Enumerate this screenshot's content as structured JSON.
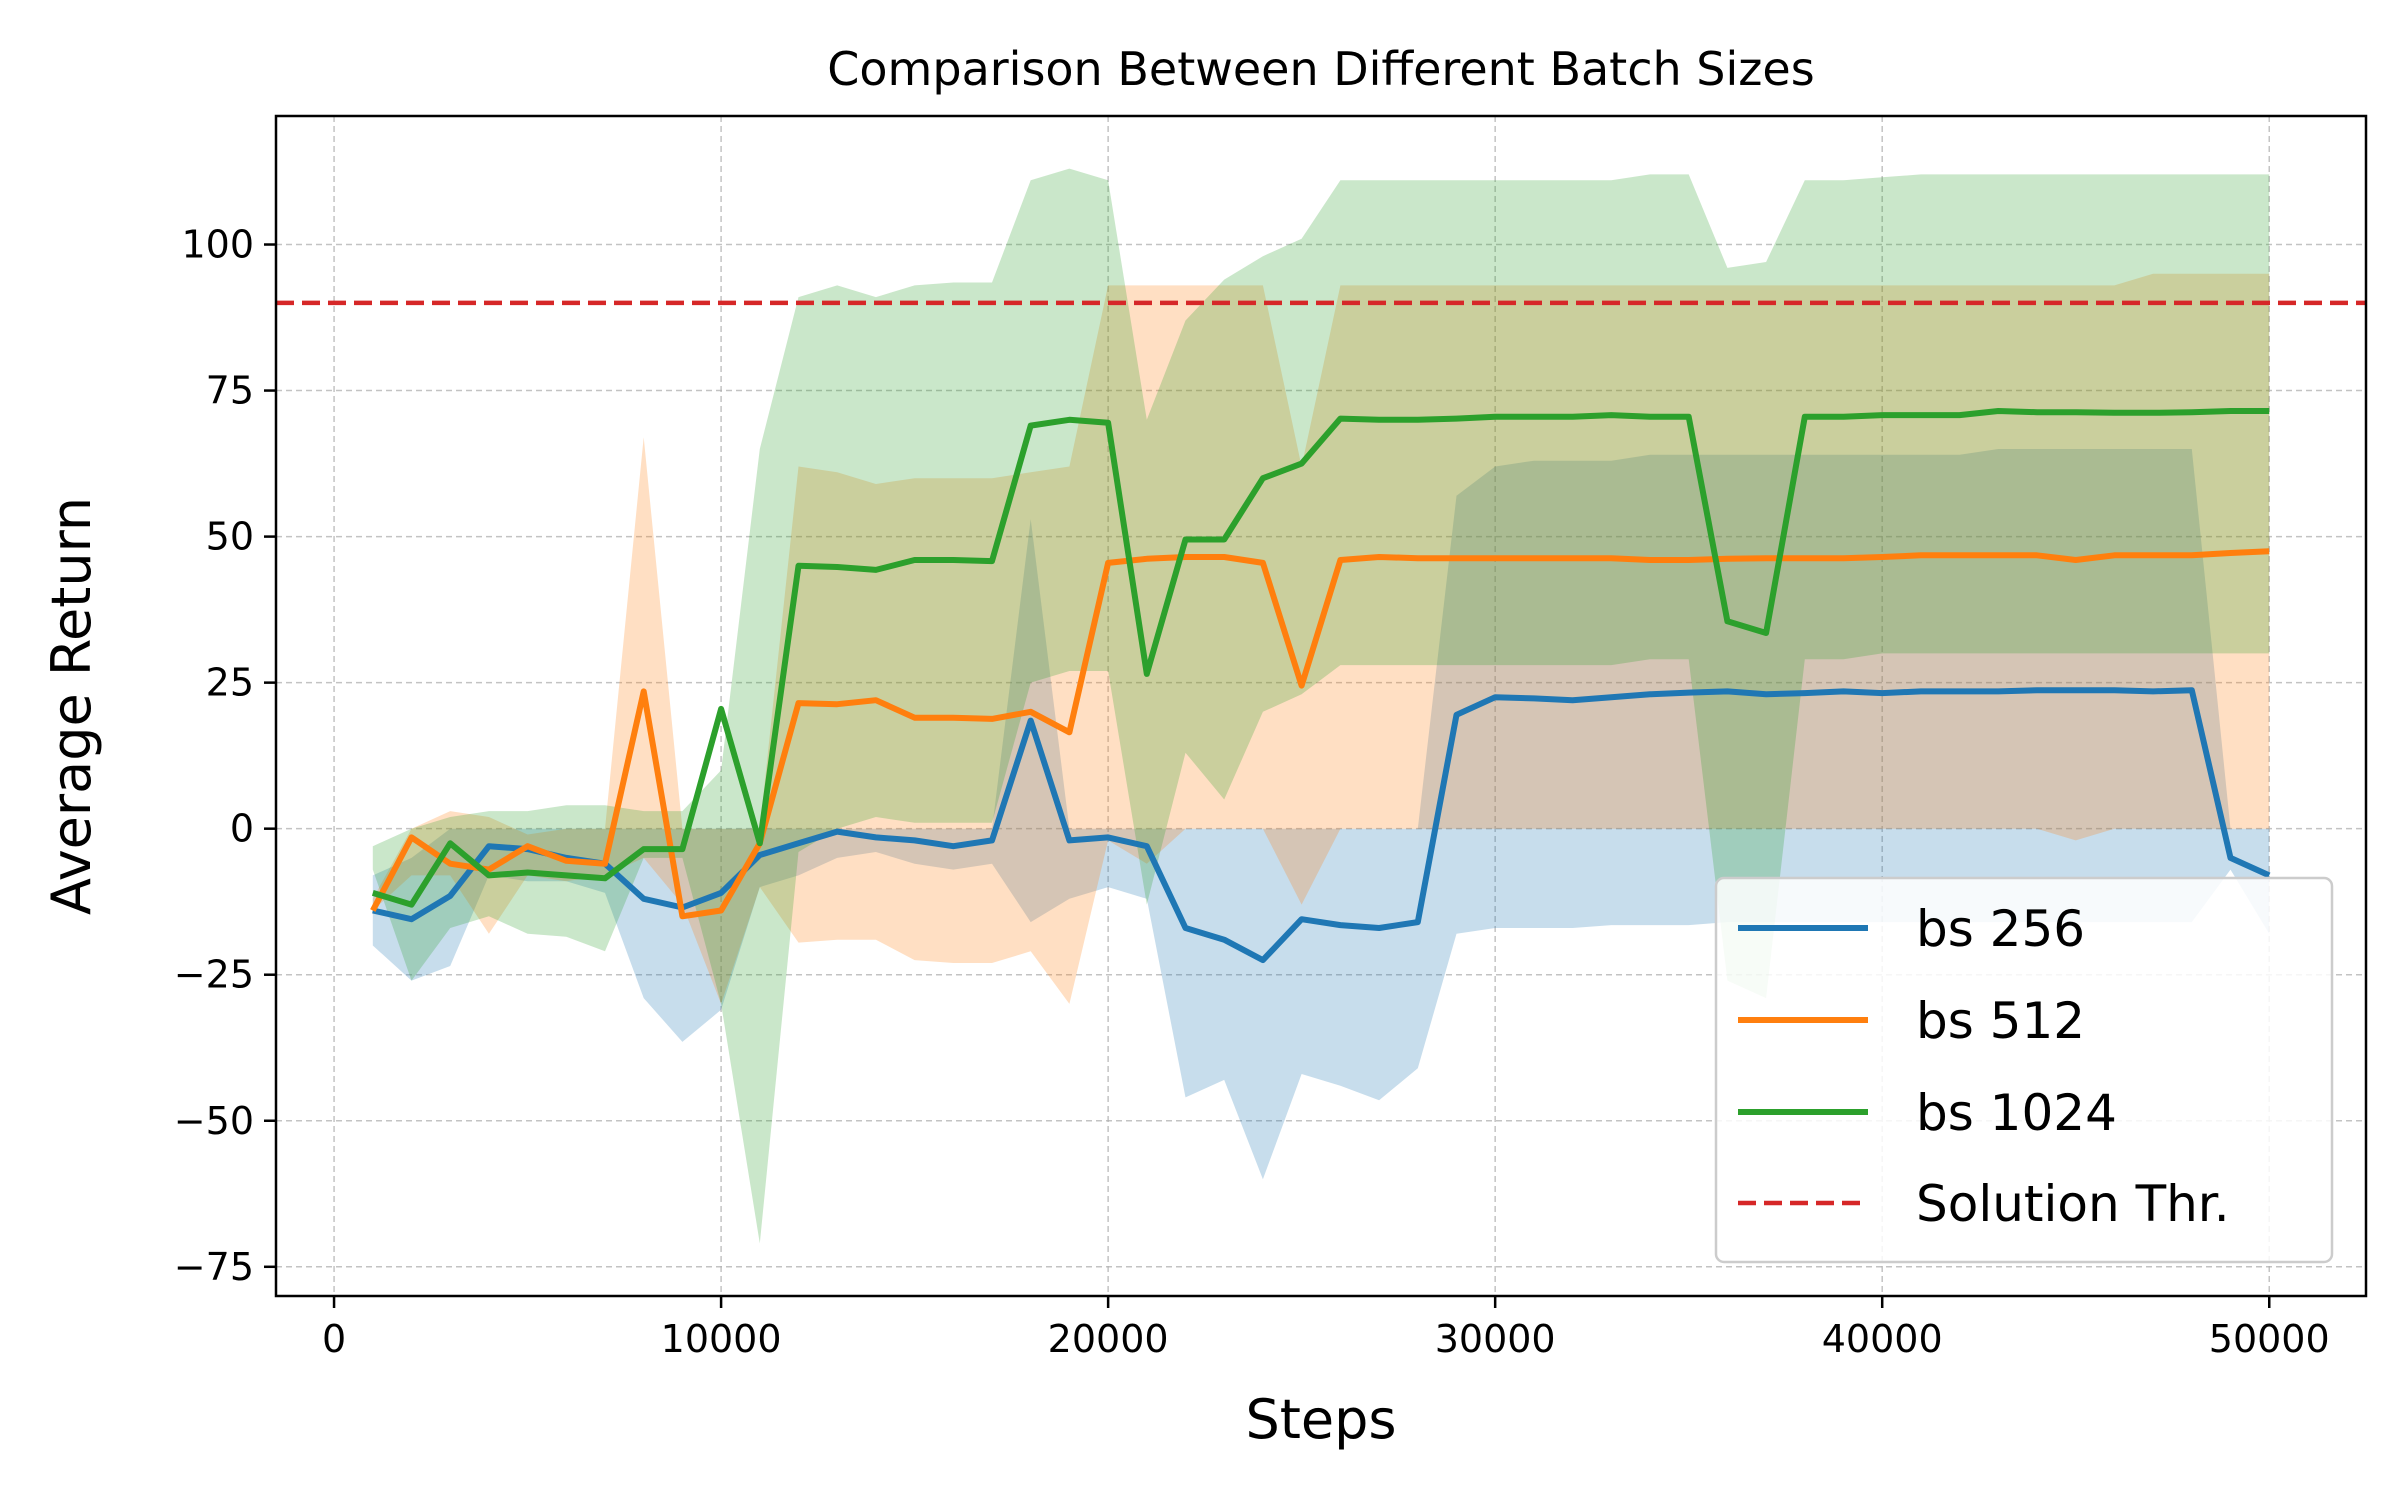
{
  "chart_data": {
    "type": "line",
    "title": "Comparison Between Different Batch Sizes",
    "xlabel": "Steps",
    "ylabel": "Average Return",
    "xlim": [
      -1500,
      52500
    ],
    "ylim": [
      -80,
      122
    ],
    "xticks": [
      0,
      10000,
      20000,
      30000,
      40000,
      50000
    ],
    "xtick_labels": [
      "0",
      "10000",
      "20000",
      "30000",
      "40000",
      "50000"
    ],
    "yticks": [
      -75,
      -50,
      -25,
      0,
      25,
      50,
      75,
      100
    ],
    "ytick_labels": [
      "−75",
      "−50",
      "−25",
      "0",
      "25",
      "50",
      "75",
      "100"
    ],
    "grid": true,
    "legend_position": "lower-right",
    "x": [
      1000,
      2000,
      3000,
      4000,
      5000,
      6000,
      7000,
      8000,
      9000,
      10000,
      11000,
      12000,
      13000,
      14000,
      15000,
      16000,
      17000,
      18000,
      19000,
      20000,
      21000,
      22000,
      23000,
      24000,
      25000,
      26000,
      27000,
      28000,
      29000,
      30000,
      31000,
      32000,
      33000,
      34000,
      35000,
      36000,
      37000,
      38000,
      39000,
      40000,
      41000,
      42000,
      43000,
      44000,
      45000,
      46000,
      47000,
      48000,
      49000,
      50000
    ],
    "series": [
      {
        "name": "bs 256",
        "color": "#1f77b4",
        "values": [
          -14,
          -15.5,
          -11.5,
          -3,
          -3.5,
          -5,
          -6,
          -12,
          -13.5,
          -11,
          -4.5,
          -2.5,
          -0.5,
          -1.5,
          -2,
          -3,
          -2,
          18.5,
          -2,
          -1.5,
          -3,
          -17,
          -19,
          -22.5,
          -15.5,
          -16.5,
          -17,
          -16,
          19.5,
          22.5,
          22.3,
          22,
          22.5,
          23,
          23.3,
          23.5,
          23,
          23.2,
          23.5,
          23.2,
          23.5,
          23.5,
          23.5,
          23.7,
          23.7,
          23.7,
          23.5,
          23.7,
          -5,
          -8
        ],
        "lower": [
          -20,
          -26,
          -23.5,
          -8,
          -9,
          -9,
          -11,
          -29,
          -36.5,
          -31,
          -10,
          -8,
          -5,
          -4,
          -6,
          -7,
          -6,
          -16,
          -12,
          -10,
          -12,
          -46,
          -43,
          -60,
          -42,
          -44,
          -46.5,
          -41,
          -18,
          -17,
          -17,
          -17,
          -16.5,
          -16.5,
          -16.5,
          -16,
          -16,
          -16,
          -16,
          -16,
          -16,
          -16,
          -16,
          -16,
          -16,
          -16,
          -16,
          -16,
          -7,
          -18
        ],
        "upper": [
          -8,
          -5,
          0,
          0,
          0,
          0,
          0,
          0,
          0,
          0,
          0,
          0,
          0,
          0,
          0,
          0,
          0,
          53,
          0,
          0,
          0,
          0,
          0,
          0,
          0,
          0,
          0,
          0,
          57,
          62,
          63,
          63,
          63,
          64,
          64,
          64,
          64,
          64,
          64,
          64,
          64,
          64,
          65,
          65,
          65,
          65,
          65,
          65,
          0,
          0
        ]
      },
      {
        "name": "bs 512",
        "color": "#ff7f0e",
        "values": [
          -14,
          -1.5,
          -6,
          -7,
          -3,
          -5.5,
          -6,
          23.5,
          -15,
          -14,
          -2.5,
          21.5,
          21.3,
          22,
          19,
          19,
          18.8,
          20,
          16.5,
          45.5,
          46.2,
          46.5,
          46.5,
          45.5,
          24.5,
          46,
          46.5,
          46.3,
          46.3,
          46.3,
          46.3,
          46.3,
          46.3,
          46,
          46,
          46.2,
          46.3,
          46.3,
          46.3,
          46.5,
          46.8,
          46.8,
          46.8,
          46.8,
          46,
          46.8,
          46.8,
          46.8,
          47.2,
          47.5
        ],
        "lower": [
          -14,
          -8,
          -8,
          -18,
          -8,
          -9,
          -8,
          -5,
          -13,
          -30,
          -10,
          -19.5,
          -19,
          -19,
          -22.5,
          -23,
          -23,
          -21,
          -30,
          -2,
          -6,
          0,
          0,
          0,
          -13,
          0,
          0,
          0,
          0,
          0,
          0,
          0,
          0,
          0,
          0,
          0,
          0,
          0,
          0,
          0,
          0,
          0,
          0,
          0,
          -2,
          0,
          0,
          0,
          0,
          0
        ],
        "upper": [
          -12,
          0,
          3,
          2,
          -1,
          0,
          0,
          67,
          0,
          0,
          0,
          62,
          61,
          59,
          60,
          60,
          60,
          61,
          62,
          93,
          93,
          93,
          93,
          93,
          62,
          93,
          93,
          93,
          93,
          93,
          93,
          93,
          93,
          93,
          93,
          93,
          93,
          93,
          93,
          93,
          93,
          93,
          93,
          93,
          93,
          93,
          95,
          95,
          95,
          95
        ]
      },
      {
        "name": "bs 1024",
        "color": "#2ca02c",
        "values": [
          -11,
          -13,
          -2.5,
          -8,
          -7.5,
          -8,
          -8.5,
          -3.5,
          -3.5,
          20.5,
          -2.5,
          45,
          44.8,
          44.3,
          46,
          46,
          45.8,
          69,
          70,
          69.5,
          26.5,
          49.5,
          49.5,
          60,
          62.5,
          70.2,
          70,
          70,
          70.2,
          70.5,
          70.5,
          70.5,
          70.8,
          70.5,
          70.5,
          35.5,
          33.5,
          70.5,
          70.5,
          70.8,
          70.8,
          70.8,
          71.5,
          71.3,
          71.3,
          71.2,
          71.2,
          71.3,
          71.5,
          71.5
        ],
        "lower": [
          -7,
          -26,
          -17,
          -15,
          -18,
          -18.5,
          -21,
          -5,
          -5,
          -30,
          -71,
          -4,
          0,
          2,
          1,
          1,
          1,
          25,
          27,
          27,
          -13,
          13,
          5,
          20,
          23,
          28,
          28,
          28,
          28,
          28,
          28,
          28,
          28,
          29,
          29,
          -26,
          -29,
          29,
          29,
          30,
          30,
          30,
          30,
          30,
          30,
          30,
          30,
          30,
          30,
          30
        ],
        "upper": [
          -3,
          0,
          2,
          3,
          3,
          4,
          4,
          3,
          3,
          10,
          65,
          91,
          93,
          91,
          93,
          93.5,
          93.5,
          111,
          113,
          111,
          70,
          87,
          94,
          98,
          101,
          111,
          111,
          111,
          111,
          111,
          111,
          111,
          111,
          112,
          112,
          96,
          97,
          111,
          111,
          111.5,
          112,
          112,
          112,
          112,
          112,
          112,
          112,
          112,
          112,
          112
        ]
      }
    ],
    "threshold": {
      "name": "Solution Thr.",
      "value": 90,
      "color": "#d62728",
      "style": "dashed"
    }
  }
}
